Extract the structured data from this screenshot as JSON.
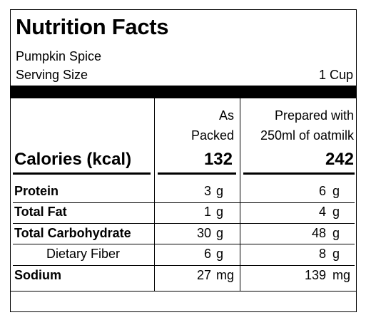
{
  "header": {
    "title": "Nutrition Facts",
    "product": "Pumpkin Spice",
    "serving_label": "Serving Size",
    "serving_value": "1 Cup"
  },
  "columns": {
    "as_packed_line1": "As",
    "as_packed_line2": "Packed",
    "prepared_line1": "Prepared with",
    "prepared_line2": "250ml of oatmilk"
  },
  "calories": {
    "label": "Calories (kcal)",
    "as_packed": "132",
    "prepared": "242"
  },
  "rows": [
    {
      "label": "Protein",
      "as_packed": "3",
      "as_packed_unit": "g",
      "prepared": "6",
      "prepared_unit": "g"
    },
    {
      "label": "Total Fat",
      "as_packed": "1",
      "as_packed_unit": "g",
      "prepared": "4",
      "prepared_unit": "g"
    },
    {
      "label": "Total Carbohydrate",
      "as_packed": "30",
      "as_packed_unit": "g",
      "prepared": "48",
      "prepared_unit": "g"
    },
    {
      "label": "Dietary Fiber",
      "as_packed": "6",
      "as_packed_unit": "g",
      "prepared": "8",
      "prepared_unit": "g"
    },
    {
      "label": "Sodium",
      "as_packed": "27",
      "as_packed_unit": "mg",
      "prepared": "139",
      "prepared_unit": "mg"
    }
  ]
}
